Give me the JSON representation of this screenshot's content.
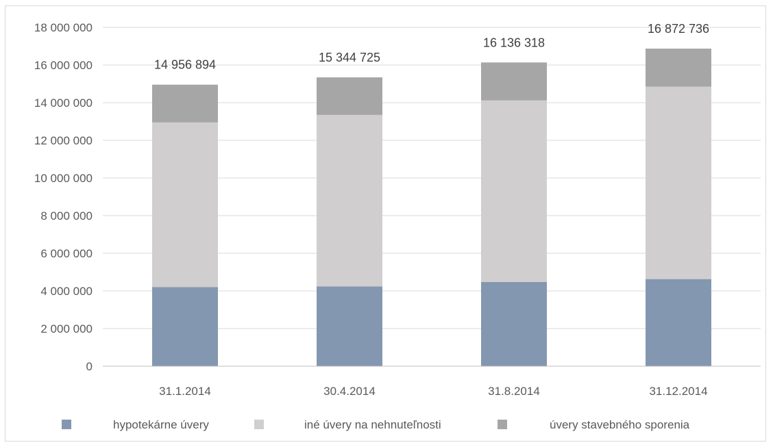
{
  "chart_data": {
    "type": "bar",
    "stacked": true,
    "categories": [
      "31.1.2014",
      "30.4.2014",
      "31.8.2014",
      "31.12.2014"
    ],
    "series": [
      {
        "name": "hypotekárne úvery",
        "values": [
          4200000,
          4240000,
          4480000,
          4630000
        ],
        "color": "#8497b0"
      },
      {
        "name": "iné úvery na nehnuteľnosti",
        "values": [
          8750000,
          9110000,
          9640000,
          10220000
        ],
        "color": "#d0cece"
      },
      {
        "name": "úvery stavebného sporenia",
        "values": [
          2006894,
          1994725,
          2016318,
          2022736
        ],
        "color": "#a6a6a6"
      }
    ],
    "totals": [
      "14 956 894",
      "15 344 725",
      "16 136 318",
      "16 872 736"
    ],
    "ylim": [
      0,
      18000000
    ],
    "yticks": [
      0,
      2000000,
      4000000,
      6000000,
      8000000,
      10000000,
      12000000,
      14000000,
      16000000,
      18000000
    ],
    "ytick_labels": [
      "0",
      "2 000 000",
      "4 000 000",
      "6 000 000",
      "8 000 000",
      "10 000 000",
      "12 000 000",
      "14 000 000",
      "16 000 000",
      "18 000 000"
    ],
    "grid": true,
    "legend_position": "bottom",
    "title": "",
    "xlabel": "",
    "ylabel": ""
  },
  "colors": {
    "gridline": "#d9d9d9",
    "axis": "#bfbfbf"
  }
}
